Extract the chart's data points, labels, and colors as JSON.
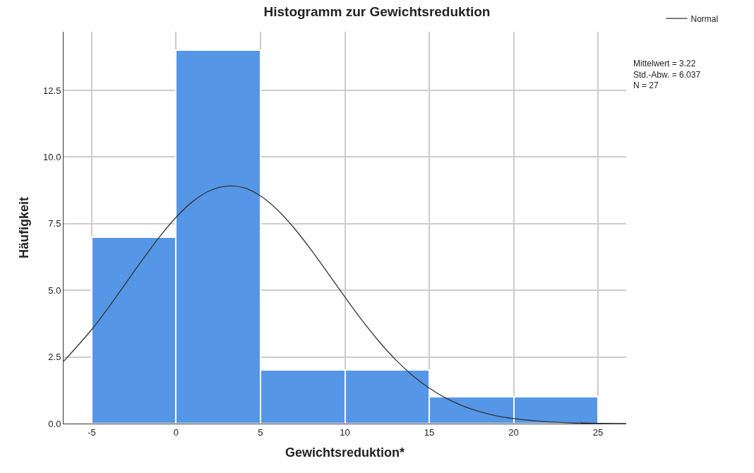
{
  "chart_data": {
    "type": "histogram",
    "title": "Histogramm zur Gewichtsreduktion",
    "xlabel": "Gewichtsreduktion*",
    "ylabel": "Häufigkeit",
    "bins": [
      -5,
      0,
      5,
      10,
      15,
      20,
      25
    ],
    "values": [
      7,
      14,
      2,
      2,
      1,
      1
    ],
    "color": "#5596e6",
    "series": [
      {
        "type": "line",
        "name": "Normal",
        "color": "#333333",
        "x": [
          -6.67,
          -5,
          -4,
          -3,
          -2,
          -1,
          0,
          1,
          2,
          3,
          4,
          5,
          6,
          7,
          8,
          9,
          10,
          11,
          12,
          13,
          14,
          15,
          16,
          17,
          18,
          19,
          20,
          22,
          24,
          26.67
        ],
        "values": [
          2.33,
          3.53,
          4.36,
          5.25,
          6.14,
          6.99,
          7.74,
          8.34,
          8.74,
          8.91,
          8.85,
          8.54,
          8.02,
          7.33,
          6.52,
          5.64,
          4.75,
          3.89,
          3.1,
          2.4,
          1.81,
          1.33,
          0.95,
          0.66,
          0.45,
          0.29,
          0.19,
          0.07,
          0.02,
          0.0
        ]
      }
    ],
    "xlim": [
      -6.67,
      26.67
    ],
    "xticks": [
      -5,
      0,
      5,
      10,
      15,
      20,
      25
    ],
    "ylim": [
      0,
      14.7
    ],
    "yticks": [
      {
        "value": 0,
        "label": "0.0"
      },
      {
        "value": 2.5,
        "label": "2.5"
      },
      {
        "value": 5,
        "label": "5.0"
      },
      {
        "value": 7.5,
        "label": "7.5"
      },
      {
        "value": 10,
        "label": "10.0"
      },
      {
        "value": 12.5,
        "label": "12.5"
      }
    ],
    "grid": true,
    "legend": "top right",
    "marker": "none",
    "line_style": "solid",
    "annotations": [
      "Mittelwert = 3.22",
      "Std.-Abw. = 6.037",
      "N = 27"
    ]
  }
}
